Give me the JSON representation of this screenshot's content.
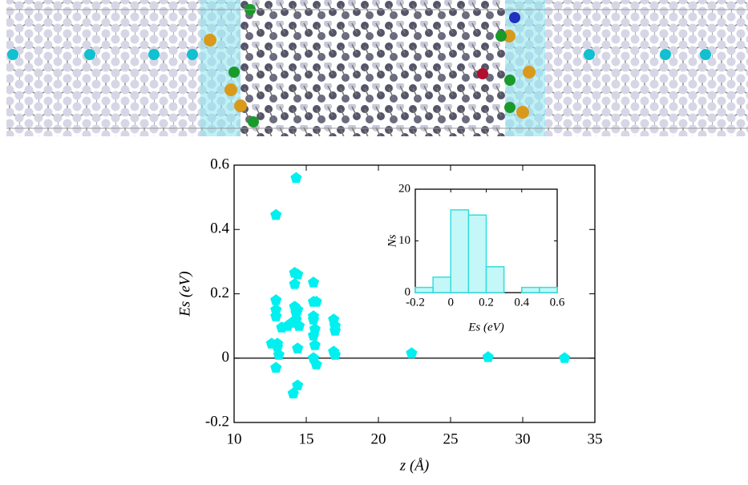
{
  "chart_data": [
    {
      "type": "scatter",
      "x_label": "z (Å)",
      "y_label": "Es (eV)",
      "color": "#00f0f0",
      "x": [
        12.6,
        12.9,
        12.9,
        12.9,
        12.9,
        12.9,
        13.0,
        13.1,
        13.0,
        13.3,
        13.7,
        14.0,
        14.1,
        14.3,
        14.2,
        14.4,
        14.2,
        14.2,
        14.3,
        14.4,
        14.4,
        14.4,
        14.3,
        14.5,
        15.5,
        15.5,
        15.7,
        15.5,
        15.5,
        15.6,
        15.5,
        15.6,
        15.5,
        15.7,
        16.9,
        17.0,
        17.0,
        16.9,
        17.0,
        22.3,
        27.6,
        32.9
      ],
      "values": [
        0.045,
        -0.03,
        0.445,
        0.18,
        0.15,
        0.13,
        0.045,
        0.01,
        0.035,
        0.095,
        0.1,
        0.11,
        -0.11,
        0.56,
        0.265,
        0.26,
        0.23,
        0.16,
        0.14,
        0.15,
        -0.085,
        0.03,
        0.12,
        0.1,
        0.235,
        0.175,
        0.175,
        0.13,
        0.12,
        0.09,
        0.07,
        0.04,
        0.0,
        -0.02,
        0.12,
        0.1,
        0.085,
        0.02,
        0.01,
        0.015,
        0.003,
        0.0
      ],
      "xlim": [
        10,
        35
      ],
      "xticks": [
        10,
        15,
        20,
        25,
        30,
        35
      ],
      "ylim": [
        -0.2,
        0.6
      ],
      "yticks": [
        -0.2,
        0,
        0.2,
        0.4,
        0.6
      ]
    },
    {
      "type": "histogram",
      "x_label": "Es (eV)",
      "y_label": "Ns",
      "color": "#c4f7f7",
      "edge_color": "#33dede",
      "bins": [
        -0.2,
        -0.1,
        0,
        0.1,
        0.2,
        0.3,
        0.4,
        0.5,
        0.6
      ],
      "values": [
        1,
        3,
        16,
        15,
        5,
        0,
        1,
        1
      ],
      "xlim": [
        -0.2,
        0.6
      ],
      "xticks": [
        -0.2,
        0,
        0.2,
        0.4,
        0.6
      ],
      "ylim": [
        0,
        20
      ],
      "yticks": [
        0,
        10,
        20
      ]
    }
  ]
}
